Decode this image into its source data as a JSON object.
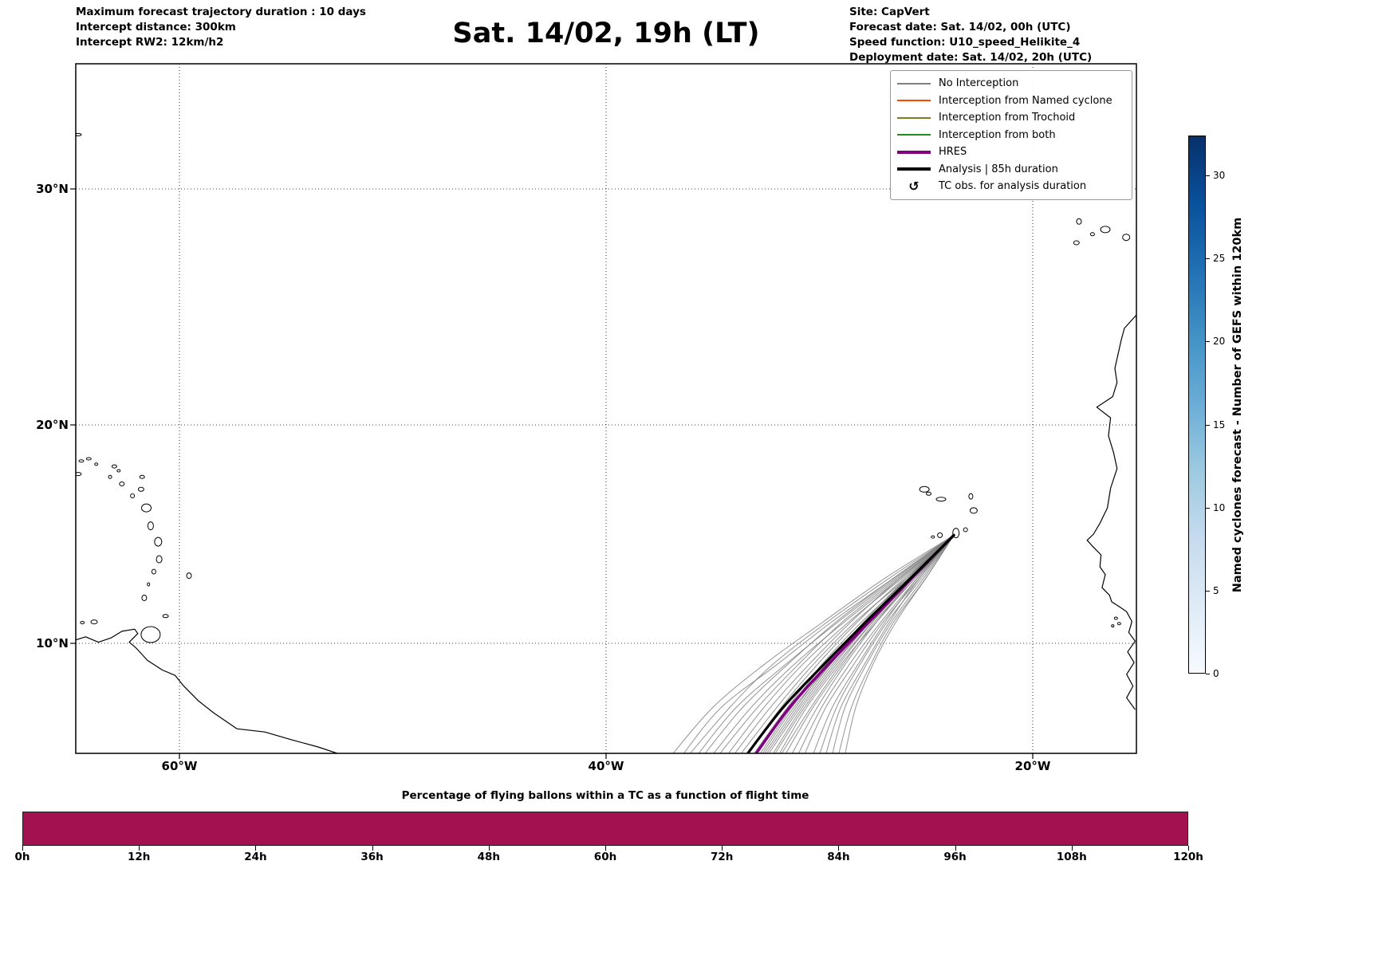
{
  "header": {
    "left": {
      "line1": "Maximum forecast trajectory duration : 10 days",
      "line2": "Intercept distance: 300km",
      "line3": "Intercept RW2: 12km/h2"
    },
    "title": "Sat. 14/02, 19h (LT)",
    "right": {
      "line1": "Site: CapVert",
      "line2": "Forecast date: Sat. 14/02, 00h (UTC)",
      "line3": "Speed function: U10_speed_Helikite_4",
      "line4": "Deployment date: Sat. 14/02, 20h (UTC)"
    }
  },
  "legend": {
    "entries": [
      {
        "label": "No Interception",
        "type": "line",
        "color": "#808080",
        "width": 2
      },
      {
        "label": "Interception from Named cyclone",
        "type": "line",
        "color": "#ff4500",
        "width": 2
      },
      {
        "label": "Interception from Trochoid",
        "type": "line",
        "color": "#827c1c",
        "width": 2
      },
      {
        "label": "Interception from both",
        "type": "line",
        "color": "#228b22",
        "width": 2
      },
      {
        "label": "HRES",
        "type": "line",
        "color": "#800080",
        "width": 4
      },
      {
        "label": "Analysis | 85h duration",
        "type": "line",
        "color": "#000000",
        "width": 4
      },
      {
        "label": "TC obs. for analysis duration",
        "type": "marker",
        "symbol": "↺",
        "color": "#000000"
      }
    ]
  },
  "colorbar": {
    "label": "Named cyclones forecast - Number of GEFS within 120km",
    "ticks": [
      0,
      5,
      10,
      15,
      20,
      25,
      30
    ],
    "vmax": 32.4,
    "colormap": "Blues",
    "colors": [
      "#f7fbff",
      "#deebf7",
      "#c6dbef",
      "#9ecae1",
      "#6baed6",
      "#4292c6",
      "#2171b5",
      "#08519c",
      "#08306b"
    ]
  },
  "chart_data": [
    {
      "type": "line",
      "title": "Sat. 14/02, 19h (LT)",
      "x_axis": {
        "ticks": [
          {
            "label": "60°W",
            "lon": 60
          },
          {
            "label": "40°W",
            "lon": 40
          },
          {
            "label": "20°W",
            "lon": 20
          }
        ]
      },
      "y_axis": {
        "ticks": [
          {
            "label": "30°N",
            "lat": 30
          },
          {
            "label": "20°N",
            "lat": 20
          },
          {
            "label": "10°N",
            "lat": 10
          }
        ]
      },
      "grid": "dotted",
      "start_point": {
        "lon_w": 23.7,
        "lat_n": 14.95,
        "site": "CapVert"
      },
      "trajectories": {
        "lats": [
          14.95,
          13.0,
          11.0,
          9.0,
          7.0,
          4.8
        ],
        "ensemble_lons": [
          [
            23.7,
            26.9,
            29.8,
            32.6,
            35.0,
            36.9
          ],
          [
            23.7,
            26.5,
            29.4,
            32.0,
            34.6,
            36.4
          ],
          [
            23.7,
            26.7,
            29.6,
            32.2,
            34.2,
            36.1
          ],
          [
            23.7,
            26.4,
            29.1,
            31.6,
            33.9,
            35.7
          ],
          [
            23.7,
            26.5,
            29.2,
            31.5,
            33.6,
            35.4
          ],
          [
            23.7,
            26.2,
            28.8,
            31.2,
            33.2,
            35.0
          ],
          [
            23.7,
            26.3,
            28.9,
            31.0,
            32.9,
            34.7
          ],
          [
            23.7,
            26.1,
            28.6,
            30.8,
            32.6,
            34.3
          ],
          [
            23.7,
            26.2,
            28.5,
            30.5,
            32.3,
            34.0
          ],
          [
            23.7,
            25.9,
            28.3,
            30.3,
            32.0,
            33.7
          ],
          [
            23.7,
            26.0,
            28.2,
            30.1,
            31.8,
            33.4
          ],
          [
            23.7,
            25.8,
            28.0,
            29.9,
            31.5,
            33.1
          ],
          [
            23.7,
            25.9,
            27.9,
            29.7,
            31.3,
            32.8
          ],
          [
            23.7,
            25.7,
            27.7,
            29.5,
            31.0,
            32.5
          ],
          [
            23.7,
            25.6,
            27.6,
            29.3,
            30.8,
            32.2
          ],
          [
            23.7,
            25.7,
            27.5,
            29.1,
            30.6,
            31.9
          ],
          [
            23.7,
            25.5,
            27.4,
            28.9,
            30.3,
            31.6
          ],
          [
            23.7,
            25.6,
            27.3,
            28.8,
            30.1,
            31.3
          ],
          [
            23.7,
            25.4,
            27.1,
            28.6,
            29.9,
            31.0
          ],
          [
            23.7,
            25.3,
            27.0,
            28.4,
            29.7,
            30.7
          ],
          [
            23.7,
            25.4,
            26.9,
            28.2,
            29.4,
            30.3
          ],
          [
            23.7,
            25.2,
            26.8,
            28.1,
            29.2,
            30.0
          ],
          [
            23.7,
            25.3,
            26.7,
            27.9,
            29.0,
            29.7
          ],
          [
            23.7,
            25.1,
            26.6,
            27.8,
            28.8,
            29.4
          ],
          [
            23.7,
            25.0,
            26.5,
            27.6,
            28.5,
            29.1
          ],
          [
            23.7,
            25.0,
            26.4,
            27.5,
            28.3,
            28.8
          ],
          [
            23.7,
            25.8,
            27.8,
            29.6,
            31.1,
            32.6
          ],
          [
            23.7,
            25.7,
            27.6,
            29.4,
            30.9,
            32.4
          ],
          [
            23.7,
            25.9,
            27.8,
            29.8,
            31.4,
            33.0
          ],
          [
            23.7,
            25.6,
            27.5,
            29.2,
            30.7,
            32.1
          ],
          [
            23.7,
            25.8,
            27.7,
            29.5,
            31.2,
            32.7
          ],
          [
            23.7,
            25.5,
            27.3,
            29.0,
            30.4,
            31.8
          ]
        ],
        "analysis_lons": [
          23.7,
          25.7,
          27.8,
          29.8,
          31.7,
          33.4
        ],
        "hres_lons": [
          23.7,
          25.65,
          27.65,
          29.6,
          31.4,
          33.0
        ]
      },
      "coastlines": {
        "south_america": [
          [
            64.87,
            10.15
          ],
          [
            64.4,
            10.3
          ],
          [
            63.8,
            10.05
          ],
          [
            63.2,
            10.25
          ],
          [
            62.7,
            10.55
          ],
          [
            62.1,
            10.65
          ],
          [
            61.95,
            10.45
          ],
          [
            62.35,
            10.05
          ],
          [
            62.05,
            9.8
          ],
          [
            61.5,
            9.2
          ],
          [
            60.8,
            8.75
          ],
          [
            60.2,
            8.5
          ],
          [
            59.8,
            8.0
          ],
          [
            59.1,
            7.3
          ],
          [
            58.4,
            6.75
          ],
          [
            57.3,
            6.0
          ],
          [
            56.0,
            5.85
          ],
          [
            54.8,
            5.5
          ],
          [
            53.5,
            5.15
          ],
          [
            52.6,
            4.85
          ]
        ],
        "africa": [
          [
            15.14,
            24.66
          ],
          [
            15.7,
            24.1
          ],
          [
            15.85,
            23.6
          ],
          [
            16.0,
            23.0
          ],
          [
            16.15,
            22.4
          ],
          [
            16.05,
            21.8
          ],
          [
            16.25,
            21.2
          ],
          [
            17.0,
            20.75
          ],
          [
            16.35,
            20.3
          ],
          [
            16.45,
            19.5
          ],
          [
            16.2,
            18.7
          ],
          [
            16.05,
            18.0
          ],
          [
            16.35,
            17.1
          ],
          [
            16.5,
            16.2
          ],
          [
            16.85,
            15.5
          ],
          [
            17.15,
            15.0
          ],
          [
            17.45,
            14.72
          ],
          [
            17.2,
            14.45
          ],
          [
            16.8,
            14.05
          ],
          [
            16.85,
            13.5
          ],
          [
            16.6,
            13.15
          ],
          [
            16.75,
            12.55
          ],
          [
            16.4,
            12.2
          ],
          [
            16.3,
            11.9
          ],
          [
            15.9,
            11.65
          ],
          [
            15.6,
            11.45
          ],
          [
            15.35,
            11.0
          ],
          [
            15.5,
            10.5
          ],
          [
            15.2,
            10.1
          ],
          [
            15.55,
            9.6
          ],
          [
            15.25,
            9.1
          ],
          [
            15.6,
            8.55
          ],
          [
            15.3,
            8.0
          ],
          [
            15.6,
            7.45
          ],
          [
            15.2,
            6.9
          ]
        ]
      },
      "islands": [
        [
          64.75,
          32.3,
          4,
          1.5
        ],
        [
          64.75,
          17.75,
          4,
          2
        ],
        [
          64.6,
          18.35,
          3,
          1.5
        ],
        [
          64.25,
          18.45,
          3,
          1.5
        ],
        [
          63.9,
          18.2,
          2,
          1.5
        ],
        [
          63.05,
          18.1,
          3,
          2
        ],
        [
          62.85,
          17.9,
          2,
          1.5
        ],
        [
          63.25,
          17.62,
          2,
          2
        ],
        [
          62.7,
          17.3,
          3,
          2.5
        ],
        [
          62.2,
          16.75,
          2.5,
          2.5
        ],
        [
          61.8,
          17.05,
          3.5,
          2.5
        ],
        [
          61.75,
          17.62,
          3,
          2
        ],
        [
          61.55,
          16.2,
          6,
          5
        ],
        [
          61.35,
          15.38,
          3.5,
          5
        ],
        [
          61.0,
          14.65,
          4.5,
          5.5
        ],
        [
          60.95,
          13.85,
          3.5,
          4.5
        ],
        [
          61.2,
          13.28,
          2.5,
          3
        ],
        [
          61.45,
          12.7,
          1.5,
          2
        ],
        [
          61.65,
          12.08,
          3,
          3.5
        ],
        [
          59.55,
          13.1,
          3,
          3.5
        ],
        [
          60.65,
          11.25,
          3.5,
          2
        ],
        [
          61.35,
          10.4,
          12,
          10
        ],
        [
          64.0,
          10.98,
          4,
          2.5
        ],
        [
          64.55,
          10.95,
          2.5,
          1.5
        ],
        [
          25.08,
          17.05,
          6,
          3.5
        ],
        [
          24.88,
          16.85,
          3,
          2
        ],
        [
          24.3,
          16.6,
          6,
          2.5
        ],
        [
          22.9,
          16.73,
          2.5,
          3.5
        ],
        [
          22.77,
          16.08,
          4.5,
          3.5
        ],
        [
          23.15,
          15.2,
          2.5,
          2.5
        ],
        [
          23.6,
          15.05,
          4,
          6
        ],
        [
          24.35,
          14.95,
          3,
          3
        ],
        [
          24.68,
          14.87,
          2,
          1.5
        ],
        [
          17.95,
          27.72,
          3.5,
          2.5
        ],
        [
          17.83,
          28.62,
          3,
          3.5
        ],
        [
          17.2,
          28.08,
          2.5,
          2
        ],
        [
          16.6,
          28.28,
          6,
          4
        ],
        [
          15.62,
          27.95,
          4.5,
          4
        ],
        [
          16.1,
          11.15,
          2,
          1.5
        ],
        [
          15.95,
          10.9,
          2,
          1.5
        ],
        [
          16.25,
          10.8,
          1.5,
          1.5
        ]
      ]
    },
    {
      "type": "bar",
      "title": "Percentage of flying ballons within a TC as a function of flight time",
      "x_ticks": [
        {
          "label": "0h",
          "hour": 0
        },
        {
          "label": "12h",
          "hour": 12
        },
        {
          "label": "24h",
          "hour": 24
        },
        {
          "label": "36h",
          "hour": 36
        },
        {
          "label": "48h",
          "hour": 48
        },
        {
          "label": "60h",
          "hour": 60
        },
        {
          "label": "72h",
          "hour": 72
        },
        {
          "label": "84h",
          "hour": 84
        },
        {
          "label": "96h",
          "hour": 96
        },
        {
          "label": "108h",
          "hour": 108
        },
        {
          "label": "120h",
          "hour": 120
        }
      ],
      "x_range_hours": [
        0,
        120
      ],
      "fill": "uniform-full-width",
      "color": "#a41150"
    }
  ]
}
